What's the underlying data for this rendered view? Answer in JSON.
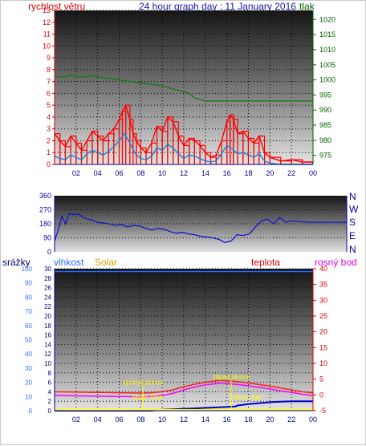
{
  "header": {
    "title": "24 hour graph day : 11 January 2016",
    "left_label": "rychlost větru",
    "right_label": "tlak"
  },
  "bottom_header": {
    "srazky": "srážky",
    "vlhkost": "vlhkost",
    "solar": "Solar",
    "teplota": "teplota",
    "rosny_bod": "rosný bod"
  },
  "colors": {
    "wind_speed": "#ff0000",
    "wind_gust_avg": "#1e7fd0",
    "pressure": "#1a7a1a",
    "wind_dir": "#1515cc",
    "humidity": "#2b6cff",
    "rain": "#0000cc",
    "solar": "#ffff00",
    "temperature": "#ff2020",
    "dew_point": "#ff00ff",
    "axis_red": "#dd0000",
    "axis_green": "#006400",
    "axis_blue": "#0000aa"
  },
  "chart_data": [
    {
      "type": "line",
      "name": "wind-pressure",
      "x_tick_labels": [
        "02",
        "04",
        "06",
        "08",
        "10",
        "12",
        "14",
        "16",
        "18",
        "20",
        "22",
        "00"
      ],
      "y_left_ticks": [
        0,
        1,
        2,
        3,
        4,
        5,
        6,
        7,
        8,
        9,
        10,
        11,
        12,
        13
      ],
      "y_right_ticks": [
        975,
        980,
        985,
        990,
        995,
        1000,
        1005,
        1010,
        1015,
        1020
      ],
      "y_left_range": [
        0,
        13
      ],
      "y_right_range": [
        972,
        1023
      ],
      "series": [
        {
          "axis": "left",
          "x": [
            0,
            0.5,
            1,
            1.5,
            2,
            2.5,
            3,
            3.5,
            4,
            4.5,
            5,
            5.5,
            6,
            6.3,
            6.6,
            7,
            7.3,
            7.6,
            8,
            8.5,
            9,
            9.5,
            10,
            10.5,
            11,
            11.5,
            12,
            12.5,
            13,
            13.5,
            14,
            14.5,
            15,
            15.5,
            16,
            16.3,
            16.6,
            17,
            17.5,
            18,
            18.5,
            19,
            19.5,
            20,
            21,
            22,
            23,
            24
          ],
          "y": [
            2.6,
            2.0,
            1.5,
            2.4,
            1.8,
            1.2,
            2.0,
            2.8,
            2.4,
            2.0,
            2.6,
            3.0,
            3.8,
            4.5,
            5.0,
            3.8,
            2.6,
            2.0,
            1.4,
            1.0,
            1.8,
            3.2,
            2.8,
            4.0,
            3.6,
            2.4,
            1.6,
            2.2,
            2.0,
            1.6,
            1.0,
            0.6,
            0.8,
            2.0,
            3.6,
            4.2,
            3.8,
            2.6,
            2.8,
            2.2,
            1.8,
            2.4,
            1.0,
            0.6,
            0.3,
            0.4,
            0.2,
            0.2
          ]
        },
        {
          "axis": "left",
          "x": [
            0,
            0.5,
            1,
            1.5,
            2,
            2.5,
            3,
            3.5,
            4,
            4.5,
            5,
            5.5,
            6,
            6.5,
            7,
            7.5,
            8,
            8.5,
            9,
            9.5,
            10,
            10.5,
            11,
            11.5,
            12,
            12.5,
            13,
            13.5,
            14,
            14.5,
            15,
            15.5,
            16,
            16.5,
            17,
            17.5,
            18,
            18.5,
            19,
            19.5,
            20,
            21,
            22,
            23,
            24
          ],
          "y": [
            0.7,
            0.5,
            0.4,
            0.8,
            0.6,
            0.4,
            0.9,
            1.2,
            1.0,
            0.8,
            1.1,
            1.5,
            2.0,
            2.6,
            1.8,
            0.9,
            0.5,
            0.4,
            0.7,
            1.4,
            1.2,
            1.7,
            1.4,
            0.9,
            0.5,
            0.8,
            0.7,
            0.5,
            0.3,
            0.2,
            0.3,
            0.9,
            1.6,
            1.3,
            0.9,
            1.0,
            0.8,
            0.6,
            0.9,
            0.3,
            0.1,
            0.0,
            0.0,
            0.0,
            0.0
          ]
        },
        {
          "axis": "right",
          "x": [
            0,
            1,
            1.5,
            2,
            3,
            3.5,
            4,
            5,
            6,
            7,
            8,
            9,
            10,
            10.5,
            11,
            12,
            12.5,
            13,
            14,
            15,
            16,
            17,
            18,
            19,
            20,
            21,
            22,
            23,
            24
          ],
          "y": [
            1001,
            1001,
            1001.5,
            1001,
            1001,
            1001.5,
            1001,
            1000.5,
            1000,
            999.5,
            999,
            998.5,
            998,
            997.5,
            997,
            996,
            995.5,
            994,
            993,
            993,
            993,
            993,
            993,
            993,
            993,
            993,
            993,
            993,
            993
          ]
        }
      ]
    },
    {
      "type": "line",
      "name": "wind-direction",
      "x_tick_labels": [],
      "y_left_ticks": [
        0,
        90,
        180,
        270,
        360
      ],
      "y_right_ticks": [
        "N",
        "W",
        "S",
        "E",
        "N"
      ],
      "y_range": [
        0,
        360
      ],
      "series": [
        {
          "x": [
            0,
            0.3,
            0.6,
            0.9,
            1.2,
            1.5,
            2,
            2.5,
            3,
            3.5,
            4,
            4.5,
            5,
            5.5,
            6,
            6.5,
            7,
            7.5,
            8,
            8.5,
            9,
            9.5,
            10,
            10.5,
            11,
            11.5,
            12,
            12.5,
            13,
            13.5,
            14,
            14.5,
            15,
            15.5,
            16,
            16.5,
            17,
            17.5,
            18,
            18.5,
            19,
            19.5,
            20,
            21,
            22,
            23,
            24
          ],
          "y": [
            70,
            140,
            230,
            180,
            245,
            240,
            240,
            215,
            205,
            190,
            185,
            180,
            170,
            175,
            160,
            170,
            165,
            150,
            140,
            150,
            145,
            130,
            120,
            125,
            115,
            110,
            100,
            95,
            90,
            80,
            60,
            70,
            110,
            105,
            115,
            160,
            200,
            210,
            180,
            220,
            190,
            200,
            195,
            190,
            190,
            190,
            190
          ]
        }
      ]
    },
    {
      "type": "line",
      "name": "temperature-humidity-rain",
      "x_tick_labels": [
        "02",
        "04",
        "06",
        "08",
        "10",
        "12",
        "14",
        "16",
        "18",
        "20",
        "22",
        "00"
      ],
      "y_left_ticks": [
        0,
        2,
        4,
        6,
        8,
        10,
        12,
        14,
        16,
        18,
        20,
        22,
        24,
        26,
        28,
        30
      ],
      "y_humidity_ticks": [
        0,
        10,
        20,
        30,
        40,
        50,
        60,
        70,
        80,
        90,
        100
      ],
      "y_right_ticks": [
        -5,
        0,
        5,
        10,
        15,
        20,
        25,
        30,
        35,
        40
      ],
      "rain_range": [
        0,
        30
      ],
      "temp_range": [
        -5,
        40
      ],
      "series": [
        {
          "axis": "humidity",
          "x": [
            0,
            24
          ],
          "y": [
            98,
            98
          ]
        },
        {
          "axis": "temp",
          "x": [
            0,
            2,
            4,
            6,
            8,
            9,
            10,
            11,
            12,
            13,
            14,
            15,
            15.5,
            16,
            17,
            18,
            19,
            20,
            21,
            22,
            23,
            24
          ],
          "y": [
            1.0,
            0.9,
            0.8,
            0.7,
            0.6,
            0.7,
            1.0,
            1.6,
            2.6,
            3.4,
            4.0,
            4.5,
            4.6,
            4.5,
            4.2,
            3.8,
            3.3,
            2.8,
            2.2,
            1.6,
            1.0,
            0.6
          ]
        },
        {
          "axis": "temp",
          "x": [
            0,
            2,
            4,
            6,
            8,
            9,
            10,
            11,
            12,
            13,
            14,
            15,
            15.5,
            16,
            17,
            18,
            19,
            20,
            21,
            22,
            23,
            24
          ],
          "y": [
            -0.1,
            -0.3,
            -0.4,
            -0.5,
            -0.6,
            -0.5,
            -0.2,
            0.5,
            1.6,
            2.5,
            3.2,
            3.6,
            3.8,
            3.6,
            3.3,
            2.9,
            2.4,
            1.9,
            1.3,
            0.8,
            0.2,
            -0.2
          ]
        },
        {
          "axis": "rain",
          "x": [
            0,
            7,
            8.2,
            9,
            10,
            11,
            12,
            13,
            14,
            15,
            16,
            16.8,
            17,
            18,
            19,
            20,
            21,
            22,
            23,
            24
          ],
          "y": [
            0,
            0,
            0,
            0,
            0.2,
            0.3,
            0.4,
            0.5,
            0.6,
            0.7,
            0.8,
            0.9,
            1.1,
            1.4,
            1.6,
            1.8,
            1.9,
            2.0,
            2.0,
            2.0
          ]
        }
      ],
      "annotations": [
        {
          "text": "východ slunce",
          "x": 8.2
        },
        {
          "text": "západ slunce",
          "x": 16.4
        },
        {
          "text": "Moon Rise",
          "x": 8.2
        },
        {
          "text": "Moon Set",
          "x": 16.4
        }
      ]
    }
  ]
}
